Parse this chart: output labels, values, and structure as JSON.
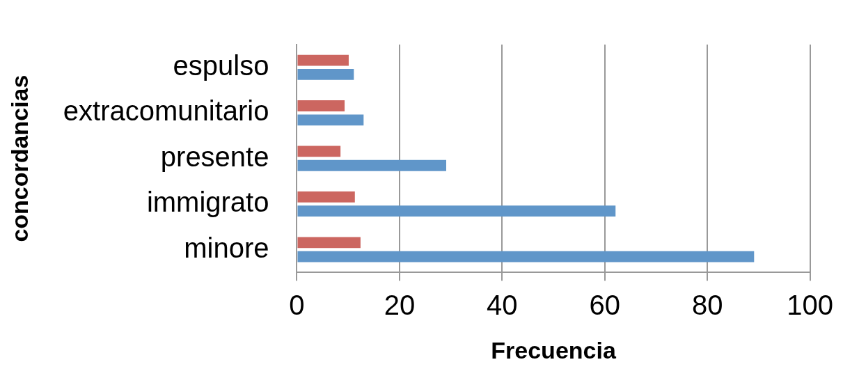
{
  "chart_data": {
    "type": "bar",
    "orientation": "horizontal",
    "xlabel": "Frecuencia",
    "ylabel": "concordancias",
    "categories": [
      "espulso",
      "extracomunitario",
      "presente",
      "immigrato",
      "minore"
    ],
    "series": [
      {
        "color": "#cc6660",
        "values": [
          10.1,
          9.3,
          8.5,
          11.3,
          12.4
        ]
      },
      {
        "color": "#6096c9",
        "values": [
          11.1,
          13.0,
          29.1,
          62.1,
          89.1
        ]
      }
    ],
    "xlim": [
      0,
      100
    ],
    "xticks": [
      0,
      20,
      40,
      60,
      80,
      100
    ],
    "grid": "x",
    "legend": false
  }
}
